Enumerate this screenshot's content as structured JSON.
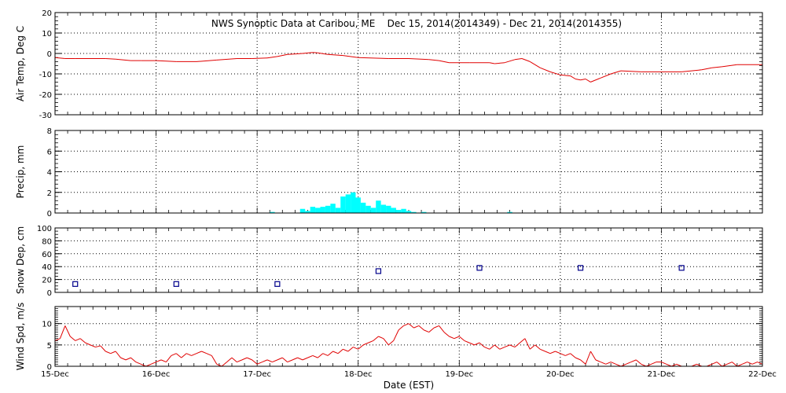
{
  "title": "NWS Synoptic Data at Caribou, ME    Dec 15, 2014(2014349) - Dec 21, 2014(2014355)",
  "xlabel": "Date (EST)",
  "x_ticks": [
    "15-Dec",
    "16-Dec",
    "17-Dec",
    "18-Dec",
    "19-Dec",
    "20-Dec",
    "21-Dec",
    "22-Dec"
  ],
  "colors": {
    "temp": "#e00000",
    "precip": "#00ffff",
    "snow": "#00008b",
    "wind": "#e00000",
    "grid": "#000000"
  },
  "chart_data": [
    {
      "type": "line",
      "ylabel": "Air Temp, Deg C",
      "ylim": [
        -30,
        20
      ],
      "y_ticks": [
        "20",
        "10",
        "0",
        "-10",
        "-20",
        "-30"
      ],
      "x": [
        15.0,
        15.1,
        15.2,
        15.35,
        15.5,
        15.6,
        15.75,
        15.85,
        16.0,
        16.2,
        16.4,
        16.6,
        16.8,
        16.95,
        17.1,
        17.2,
        17.3,
        17.45,
        17.55,
        17.6,
        17.7,
        17.85,
        18.0,
        18.3,
        18.5,
        18.7,
        18.8,
        18.9,
        19.1,
        19.3,
        19.35,
        19.45,
        19.55,
        19.62,
        19.7,
        19.8,
        19.9,
        20.0,
        20.1,
        20.15,
        20.2,
        20.25,
        20.3,
        20.4,
        20.5,
        20.6,
        20.8,
        21.0,
        21.2,
        21.4,
        21.5,
        21.6,
        21.75,
        22.0
      ],
      "y": [
        -2.0,
        -2.5,
        -2.5,
        -2.5,
        -2.5,
        -2.8,
        -3.5,
        -3.5,
        -3.5,
        -4.0,
        -4.0,
        -3.2,
        -2.5,
        -2.5,
        -2.2,
        -1.5,
        -0.5,
        0.0,
        0.5,
        0.3,
        -0.5,
        -1.0,
        -2.0,
        -2.5,
        -2.5,
        -3.0,
        -3.5,
        -4.5,
        -4.5,
        -4.5,
        -5.0,
        -4.5,
        -3.0,
        -2.5,
        -4.0,
        -7.0,
        -9.0,
        -10.5,
        -11.0,
        -12.5,
        -13.0,
        -12.5,
        -14.0,
        -12.0,
        -10.0,
        -8.5,
        -9.0,
        -9.0,
        -9.0,
        -8.0,
        -7.0,
        -6.5,
        -5.5,
        -5.5
      ]
    },
    {
      "type": "bar",
      "ylabel": "Precip, mm",
      "ylim": [
        0,
        8
      ],
      "y_ticks": [
        "8",
        "6",
        "4",
        "2",
        "0"
      ],
      "x": [
        17.15,
        17.45,
        17.5,
        17.55,
        17.6,
        17.65,
        17.7,
        17.75,
        17.8,
        17.85,
        17.9,
        17.95,
        18.0,
        18.05,
        18.1,
        18.15,
        18.2,
        18.25,
        18.3,
        18.35,
        18.4,
        18.45,
        18.5,
        18.55,
        18.65,
        19.5
      ],
      "values": [
        0.1,
        0.4,
        0.2,
        0.6,
        0.5,
        0.6,
        0.7,
        0.9,
        0.5,
        1.6,
        1.8,
        2.0,
        1.5,
        1.0,
        0.7,
        0.5,
        1.2,
        0.8,
        0.7,
        0.5,
        0.3,
        0.4,
        0.2,
        0.1,
        0.1,
        0.1
      ]
    },
    {
      "type": "scatter",
      "ylabel": "Snow Dep, cm",
      "ylim": [
        0,
        100
      ],
      "y_ticks": [
        "100",
        "80",
        "60",
        "40",
        "20",
        "0"
      ],
      "x": [
        15.2,
        16.2,
        17.2,
        18.2,
        19.2,
        20.2,
        21.2
      ],
      "y": [
        13,
        13,
        13,
        33,
        38,
        38,
        38
      ]
    },
    {
      "type": "line",
      "ylabel": "Wind Spd, m/s",
      "ylim": [
        0,
        14
      ],
      "y_ticks": [
        "10",
        "5",
        "0"
      ],
      "x": [
        15.0,
        15.05,
        15.1,
        15.15,
        15.2,
        15.25,
        15.3,
        15.35,
        15.4,
        15.45,
        15.5,
        15.55,
        15.6,
        15.65,
        15.7,
        15.75,
        15.8,
        15.85,
        15.9,
        15.95,
        16.0,
        16.05,
        16.1,
        16.15,
        16.2,
        16.25,
        16.3,
        16.35,
        16.4,
        16.45,
        16.5,
        16.55,
        16.6,
        16.65,
        16.7,
        16.75,
        16.8,
        16.85,
        16.9,
        16.95,
        17.0,
        17.05,
        17.1,
        17.15,
        17.2,
        17.25,
        17.3,
        17.35,
        17.4,
        17.45,
        17.5,
        17.55,
        17.6,
        17.65,
        17.7,
        17.75,
        17.8,
        17.85,
        17.9,
        17.95,
        18.0,
        18.05,
        18.1,
        18.15,
        18.2,
        18.25,
        18.3,
        18.35,
        18.4,
        18.45,
        18.5,
        18.55,
        18.6,
        18.65,
        18.7,
        18.75,
        18.8,
        18.85,
        18.9,
        18.95,
        19.0,
        19.05,
        19.1,
        19.15,
        19.2,
        19.25,
        19.3,
        19.35,
        19.4,
        19.45,
        19.5,
        19.55,
        19.6,
        19.65,
        19.7,
        19.75,
        19.8,
        19.85,
        19.9,
        19.95,
        20.0,
        20.05,
        20.1,
        20.15,
        20.2,
        20.25,
        20.3,
        20.35,
        20.4,
        20.45,
        20.5,
        20.55,
        20.6,
        20.65,
        20.7,
        20.75,
        20.8,
        20.85,
        20.9,
        20.95,
        21.0,
        21.05,
        21.1,
        21.15,
        21.2,
        21.25,
        21.3,
        21.35,
        21.4,
        21.45,
        21.5,
        21.55,
        21.6,
        21.65,
        21.7,
        21.75,
        21.8,
        21.85,
        21.9,
        21.95,
        22.0
      ],
      "y": [
        6.0,
        6.5,
        9.5,
        7.0,
        6.0,
        6.5,
        5.5,
        5.0,
        4.5,
        4.8,
        3.5,
        3.0,
        3.5,
        2.0,
        1.5,
        2.0,
        1.0,
        0.5,
        0.0,
        0.5,
        1.0,
        1.5,
        1.0,
        2.5,
        3.0,
        2.0,
        3.0,
        2.5,
        3.0,
        3.5,
        3.0,
        2.5,
        0.5,
        0.0,
        1.0,
        2.0,
        1.0,
        1.5,
        2.0,
        1.5,
        0.5,
        1.0,
        1.5,
        1.0,
        1.5,
        2.0,
        1.0,
        1.5,
        2.0,
        1.5,
        2.0,
        2.5,
        2.0,
        3.0,
        2.5,
        3.5,
        3.0,
        4.0,
        3.5,
        4.5,
        4.0,
        5.0,
        5.5,
        6.0,
        7.0,
        6.5,
        5.0,
        6.0,
        8.5,
        9.5,
        10.0,
        9.0,
        9.5,
        8.5,
        8.0,
        9.0,
        9.5,
        8.0,
        7.0,
        6.5,
        7.0,
        6.0,
        5.5,
        5.0,
        5.5,
        4.5,
        4.0,
        5.0,
        4.0,
        4.5,
        5.0,
        4.5,
        5.5,
        6.5,
        4.0,
        5.0,
        4.0,
        3.5,
        3.0,
        3.5,
        3.0,
        2.5,
        3.0,
        2.0,
        1.5,
        0.5,
        3.5,
        1.5,
        1.0,
        0.5,
        1.0,
        0.5,
        0.0,
        0.5,
        1.0,
        1.5,
        0.5,
        0.0,
        0.5,
        1.0,
        1.0,
        0.5,
        0.0,
        0.5,
        0.0,
        0.0,
        0.0,
        0.5,
        0.0,
        0.0,
        0.5,
        1.0,
        0.0,
        0.5,
        1.0,
        0.0,
        0.5,
        1.0,
        0.5,
        1.0,
        0.5
      ]
    }
  ]
}
